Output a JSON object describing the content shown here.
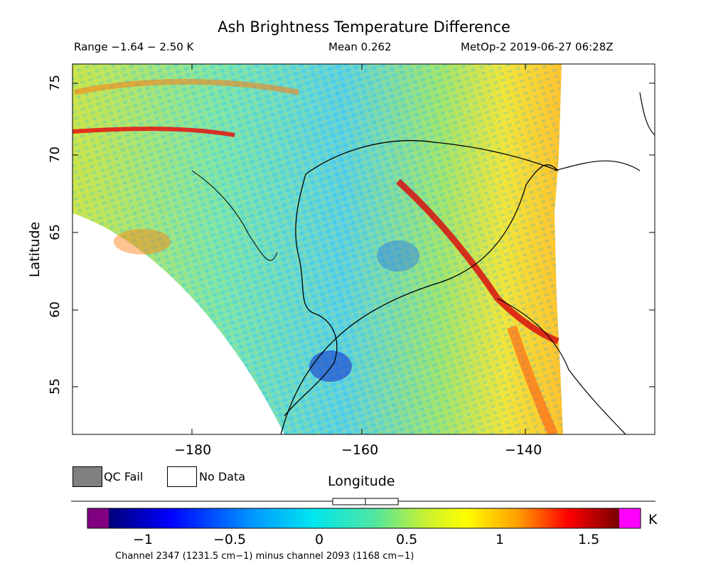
{
  "title": "Ash Brightness Temperature Difference",
  "range_text": "Range −1.64 − 2.50 K",
  "mean_text": "Mean 0.262",
  "source_text": "MetOp-2 2019-06-27 06:28Z",
  "y_axis_label": "Latitude",
  "x_axis_label": "Longitude",
  "lat_ticks": [
    "75",
    "70",
    "65",
    "60",
    "55"
  ],
  "lon_ticks": [
    "−180",
    "−160",
    "−140"
  ],
  "legend": {
    "qc_fail": "QC Fail",
    "no_data": "No Data",
    "qc_fail_color": "#808080",
    "no_data_color": "#ffffff"
  },
  "colorbar": {
    "unit": "K",
    "ticks": [
      "−1",
      "−0.5",
      "0",
      "0.5",
      "1",
      "1.5"
    ],
    "under_color": "#800080",
    "over_color": "#ff00ff"
  },
  "footnote": "Channel 2347 (1231.5 cm−1) minus channel 2093 (1168 cm−1)"
}
